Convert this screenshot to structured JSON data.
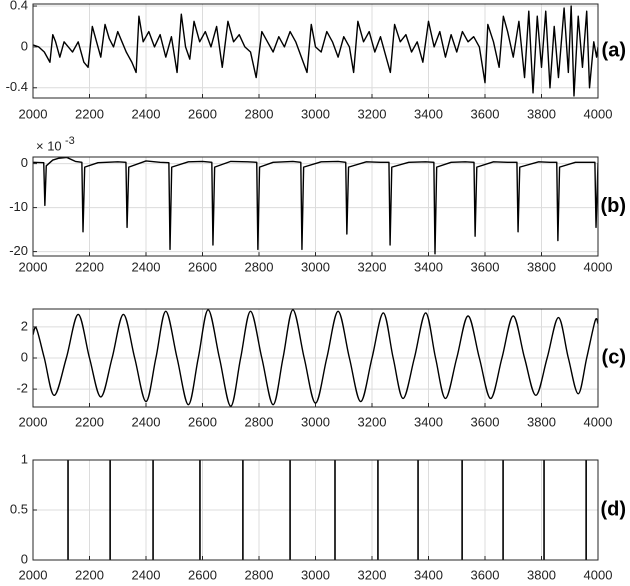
{
  "chart_data": [
    {
      "type": "line",
      "label": "(a)",
      "color": "#000000",
      "grid": true,
      "xlim": [
        2000,
        4000
      ],
      "xticks": [
        2000,
        2200,
        2400,
        2600,
        2800,
        3000,
        3200,
        3400,
        3600,
        3800,
        4000
      ],
      "ylim": [
        -0.5,
        0.42
      ],
      "yticks": [
        -0.4,
        0,
        0.4
      ],
      "x": [
        2000,
        2020,
        2040,
        2060,
        2070,
        2080,
        2095,
        2110,
        2125,
        2140,
        2160,
        2180,
        2195,
        2210,
        2225,
        2240,
        2255,
        2270,
        2285,
        2300,
        2315,
        2330,
        2350,
        2365,
        2375,
        2390,
        2410,
        2430,
        2450,
        2470,
        2490,
        2510,
        2525,
        2540,
        2555,
        2570,
        2590,
        2610,
        2630,
        2650,
        2670,
        2690,
        2710,
        2730,
        2750,
        2770,
        2790,
        2810,
        2830,
        2850,
        2870,
        2890,
        2910,
        2930,
        2950,
        2970,
        2985,
        3000,
        3020,
        3040,
        3060,
        3080,
        3100,
        3120,
        3135,
        3150,
        3170,
        3190,
        3210,
        3230,
        3250,
        3265,
        3280,
        3300,
        3320,
        3340,
        3360,
        3380,
        3400,
        3420,
        3440,
        3460,
        3480,
        3500,
        3520,
        3540,
        3560,
        3580,
        3600,
        3610,
        3630,
        3650,
        3665,
        3680,
        3700,
        3720,
        3740,
        3755,
        3770,
        3785,
        3800,
        3815,
        3830,
        3845,
        3860,
        3880,
        3895,
        3905,
        3915,
        3930,
        3945,
        3960,
        3970,
        3985,
        3995,
        4000
      ],
      "values": [
        0.02,
        0,
        -0.05,
        -0.15,
        0.12,
        0.05,
        -0.1,
        0.05,
        0,
        -0.05,
        0.05,
        -0.15,
        -0.2,
        0.2,
        0.05,
        -0.1,
        0.22,
        0.08,
        0,
        0.15,
        0.05,
        -0.05,
        -0.15,
        -0.25,
        0.3,
        0.05,
        0.15,
        0,
        0.12,
        -0.1,
        0.1,
        -0.25,
        0.32,
        0,
        -0.12,
        0.25,
        0.05,
        0.15,
        0,
        0.2,
        -0.2,
        0.25,
        0.05,
        0.12,
        0,
        -0.05,
        -0.3,
        0.15,
        0.05,
        -0.05,
        0.1,
        0,
        0.15,
        0.05,
        -0.1,
        -0.25,
        0.22,
        0,
        -0.05,
        0.15,
        0.05,
        -0.1,
        0.1,
        0,
        -0.25,
        0.25,
        0.05,
        0.15,
        -0.05,
        0.1,
        -0.1,
        -0.25,
        0.22,
        0.05,
        0.12,
        -0.05,
        0.05,
        -0.15,
        0.25,
        0,
        0.15,
        -0.1,
        0.12,
        -0.05,
        0.15,
        0.05,
        0.1,
        0,
        -0.35,
        0.22,
        0.05,
        -0.2,
        0.3,
        0.15,
        -0.1,
        0.25,
        -0.3,
        0.35,
        -0.45,
        0.3,
        -0.2,
        0.35,
        -0.4,
        0.2,
        -0.3,
        0.38,
        -0.25,
        0.4,
        -0.48,
        0.3,
        -0.2,
        0.35,
        -0.4,
        0.05,
        -0.1,
        0
      ]
    },
    {
      "type": "line",
      "label": "(b)",
      "color": "#000000",
      "grid": true,
      "y_scale_label": "× 10",
      "y_scale_exponent": "-3",
      "xlim": [
        2000,
        4000
      ],
      "xticks": [
        2000,
        2200,
        2400,
        2600,
        2800,
        3000,
        3200,
        3400,
        3600,
        3800,
        4000
      ],
      "ylim": [
        -21,
        1.5
      ],
      "yticks": [
        -20,
        -10,
        0
      ],
      "x": [
        2000,
        2038,
        2042,
        2047,
        2070,
        2090,
        2120,
        2150,
        2173,
        2177,
        2183,
        2230,
        2300,
        2329,
        2333,
        2339,
        2400,
        2450,
        2481,
        2485,
        2491,
        2550,
        2600,
        2633,
        2637,
        2643,
        2700,
        2760,
        2792,
        2796,
        2802,
        2850,
        2920,
        2948,
        2952,
        2958,
        3020,
        3080,
        3107,
        3111,
        3117,
        3180,
        3230,
        3260,
        3264,
        3270,
        3330,
        3390,
        3419,
        3423,
        3429,
        3480,
        3530,
        3561,
        3565,
        3571,
        3630,
        3680,
        3713,
        3717,
        3723,
        3790,
        3830,
        3854,
        3858,
        3864,
        3920,
        3960,
        3989,
        3993,
        3999,
        4000
      ],
      "values": [
        0.3,
        0.2,
        -9.5,
        -0.5,
        0.8,
        1.2,
        1.4,
        0.5,
        0.3,
        -15.5,
        -0.8,
        0.2,
        0.4,
        0.3,
        -14.5,
        -0.8,
        0.6,
        0.3,
        0.2,
        -19.5,
        -0.8,
        0.4,
        0.5,
        0.3,
        -18.5,
        -0.8,
        0.5,
        0.4,
        0.3,
        -19.5,
        -0.8,
        0.3,
        0.5,
        0.3,
        -19.5,
        -0.8,
        0.4,
        0.5,
        0.3,
        -16,
        -0.8,
        0.4,
        0.3,
        0.3,
        -18.5,
        -0.8,
        0.3,
        0.4,
        0.3,
        -20.5,
        -0.8,
        0.3,
        0.4,
        0.3,
        -16.5,
        -0.8,
        0.4,
        0.3,
        0.3,
        -15.5,
        -0.8,
        0.4,
        0.3,
        0.3,
        -17.5,
        -0.8,
        0.3,
        0.3,
        0.3,
        -14.5,
        -2,
        0.2
      ]
    },
    {
      "type": "line",
      "label": "(c)",
      "color": "#000000",
      "grid": true,
      "smooth": true,
      "xlim": [
        2000,
        4000
      ],
      "xticks": [
        2000,
        2200,
        2400,
        2600,
        2800,
        3000,
        3200,
        3400,
        3600,
        3800,
        4000
      ],
      "ylim": [
        -3.15,
        3.15
      ],
      "yticks": [
        -2,
        0,
        2
      ],
      "x": [
        2000,
        2012,
        2040,
        2075,
        2118,
        2160,
        2200,
        2240,
        2280,
        2320,
        2360,
        2400,
        2435,
        2470,
        2510,
        2550,
        2585,
        2620,
        2660,
        2700,
        2735,
        2770,
        2810,
        2850,
        2885,
        2920,
        2960,
        3000,
        3040,
        3080,
        3120,
        3160,
        3200,
        3240,
        3275,
        3310,
        3350,
        3390,
        3425,
        3460,
        3500,
        3540,
        3580,
        3620,
        3660,
        3700,
        3740,
        3780,
        3820,
        3860,
        3895,
        3930,
        3960,
        3990,
        4000
      ],
      "values": [
        1.5,
        1.9,
        0,
        -2.4,
        0,
        2.8,
        0,
        -2.5,
        0,
        2.8,
        0,
        -2.8,
        0,
        3.0,
        0,
        -3.0,
        0,
        3.1,
        0,
        -3.1,
        0,
        3.0,
        0,
        -3.0,
        0,
        3.1,
        0,
        -2.9,
        0,
        3.0,
        0,
        -2.8,
        0,
        2.9,
        0,
        -2.6,
        0,
        2.9,
        0,
        -2.6,
        0,
        2.7,
        0,
        -2.6,
        0,
        2.7,
        0,
        -2.4,
        0,
        2.6,
        0,
        -2.3,
        0,
        2.4,
        2.2
      ]
    },
    {
      "type": "stem",
      "label": "(d)",
      "color": "#000000",
      "grid": true,
      "xlim": [
        2000,
        4000
      ],
      "xticks": [
        2000,
        2200,
        2400,
        2600,
        2800,
        3000,
        3200,
        3400,
        3600,
        3800,
        4000
      ],
      "ylim": [
        0,
        1
      ],
      "yticks": [
        0,
        0.5,
        1
      ],
      "x": [
        2124,
        2273,
        2425,
        2591,
        2743,
        2910,
        3069,
        3221,
        3363,
        3519,
        3664,
        3809,
        3958
      ],
      "values": [
        1,
        1,
        1,
        1,
        1,
        1,
        1,
        1,
        1,
        1,
        1,
        1,
        1
      ]
    }
  ]
}
